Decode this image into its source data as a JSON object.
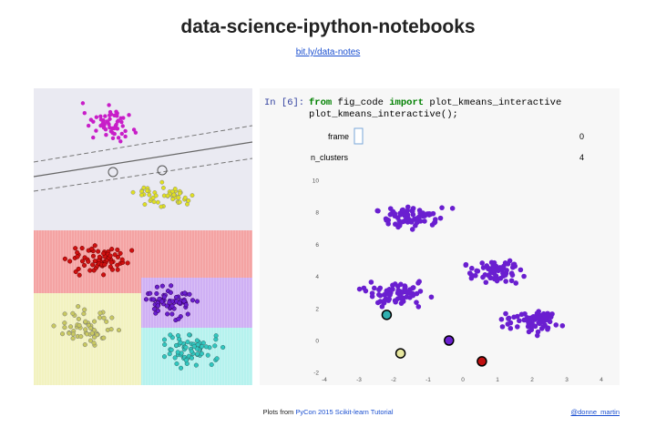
{
  "header": {
    "title": "data-science-ipython-notebooks",
    "link": "bit.ly/data-notes"
  },
  "notebook": {
    "prompt": "In [6]:",
    "code": [
      [
        "from",
        " fig_code ",
        "import",
        " plot_kmeans_interactive"
      ],
      [
        "plot_kmeans_interactive();"
      ]
    ],
    "widgets": [
      {
        "label": "frame",
        "value": 0
      },
      {
        "label": "n_clusters",
        "value": 4
      }
    ],
    "plot": {
      "xticks": [
        -4,
        -3,
        -2,
        -1,
        0,
        1,
        2,
        3,
        4
      ],
      "yticks": [
        -2,
        0,
        2,
        4,
        6,
        8,
        10
      ]
    }
  },
  "footer": {
    "prefix": "Plots from",
    "link": "PyCon 2015 Scikit-learn Tutorial",
    "handle": "@donne_martin"
  }
}
